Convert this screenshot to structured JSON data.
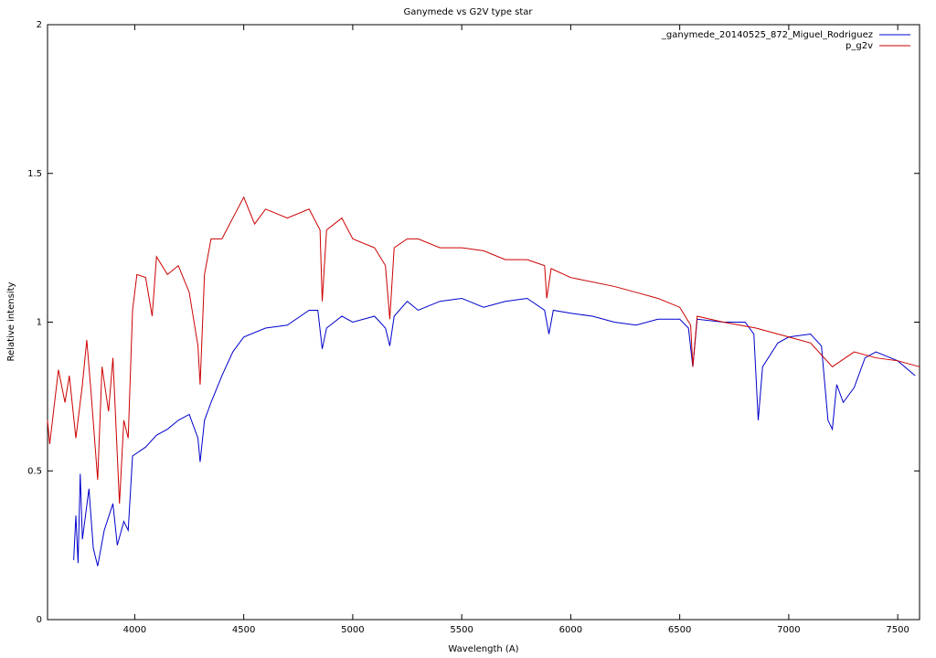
{
  "chart_data": {
    "type": "line",
    "title": "Ganymede vs G2V type star",
    "x_label": "Wavelength (A)",
    "y_label": "Relative intensity",
    "xlim": [
      3600,
      7600
    ],
    "xticks": [
      4000,
      4500,
      5000,
      5500,
      6000,
      6500,
      7000,
      7500
    ],
    "ylim": [
      0,
      2
    ],
    "yticks": [
      0,
      0.5,
      1,
      1.5,
      2
    ],
    "legend": "top-right",
    "series": [
      {
        "name": "_ganymede_20140525_872_Miguel_Rodriguez",
        "color": "#0000cc",
        "x": [
          3720,
          3730,
          3740,
          3750,
          3760,
          3790,
          3810,
          3830,
          3860,
          3900,
          3920,
          3950,
          3970,
          3990,
          4050,
          4100,
          4150,
          4200,
          4250,
          4290,
          4300,
          4320,
          4350,
          4400,
          4450,
          4500,
          4600,
          4700,
          4800,
          4840,
          4860,
          4880,
          4950,
          5000,
          5100,
          5150,
          5170,
          5190,
          5250,
          5300,
          5400,
          5500,
          5600,
          5700,
          5800,
          5880,
          5900,
          5920,
          6000,
          6100,
          6200,
          6300,
          6400,
          6500,
          6540,
          6560,
          6580,
          6700,
          6800,
          6840,
          6860,
          6880,
          6950,
          7000,
          7100,
          7150,
          7180,
          7200,
          7220,
          7250,
          7300,
          7350,
          7400,
          7500,
          7580
        ],
        "values": [
          0.2,
          0.35,
          0.19,
          0.49,
          0.27,
          0.44,
          0.24,
          0.18,
          0.3,
          0.39,
          0.25,
          0.33,
          0.3,
          0.55,
          0.58,
          0.62,
          0.64,
          0.67,
          0.69,
          0.61,
          0.53,
          0.67,
          0.73,
          0.82,
          0.9,
          0.95,
          0.98,
          0.99,
          1.04,
          1.04,
          0.91,
          0.98,
          1.02,
          1.0,
          1.02,
          0.98,
          0.92,
          1.02,
          1.07,
          1.04,
          1.07,
          1.08,
          1.05,
          1.07,
          1.08,
          1.04,
          0.96,
          1.04,
          1.03,
          1.02,
          1.0,
          0.99,
          1.01,
          1.01,
          0.98,
          0.85,
          1.01,
          1.0,
          1.0,
          0.96,
          0.67,
          0.85,
          0.93,
          0.95,
          0.96,
          0.92,
          0.67,
          0.64,
          0.79,
          0.73,
          0.78,
          0.88,
          0.9,
          0.87,
          0.82
        ]
      },
      {
        "name": "p_g2v",
        "color": "#cc0000",
        "x": [
          3600,
          3610,
          3650,
          3680,
          3700,
          3730,
          3760,
          3780,
          3800,
          3830,
          3850,
          3880,
          3900,
          3930,
          3950,
          3970,
          3990,
          4010,
          4050,
          4080,
          4100,
          4150,
          4200,
          4250,
          4290,
          4300,
          4320,
          4350,
          4400,
          4450,
          4500,
          4550,
          4600,
          4700,
          4800,
          4850,
          4860,
          4880,
          4950,
          5000,
          5100,
          5150,
          5170,
          5190,
          5250,
          5300,
          5400,
          5500,
          5600,
          5700,
          5800,
          5880,
          5890,
          5910,
          6000,
          6200,
          6300,
          6400,
          6500,
          6550,
          6560,
          6580,
          6700,
          6850,
          7000,
          7100,
          7200,
          7300,
          7400,
          7500,
          7600
        ],
        "values": [
          0.67,
          0.59,
          0.84,
          0.73,
          0.82,
          0.61,
          0.79,
          0.94,
          0.76,
          0.47,
          0.85,
          0.7,
          0.88,
          0.39,
          0.67,
          0.61,
          1.04,
          1.16,
          1.15,
          1.02,
          1.22,
          1.16,
          1.19,
          1.1,
          0.92,
          0.79,
          1.16,
          1.28,
          1.28,
          1.35,
          1.42,
          1.33,
          1.38,
          1.35,
          1.38,
          1.31,
          1.07,
          1.31,
          1.35,
          1.28,
          1.25,
          1.19,
          1.01,
          1.25,
          1.28,
          1.28,
          1.25,
          1.25,
          1.24,
          1.21,
          1.21,
          1.19,
          1.08,
          1.18,
          1.15,
          1.12,
          1.1,
          1.08,
          1.05,
          0.99,
          0.85,
          1.02,
          1.0,
          0.98,
          0.95,
          0.93,
          0.85,
          0.9,
          0.88,
          0.87,
          0.85
        ]
      }
    ]
  }
}
